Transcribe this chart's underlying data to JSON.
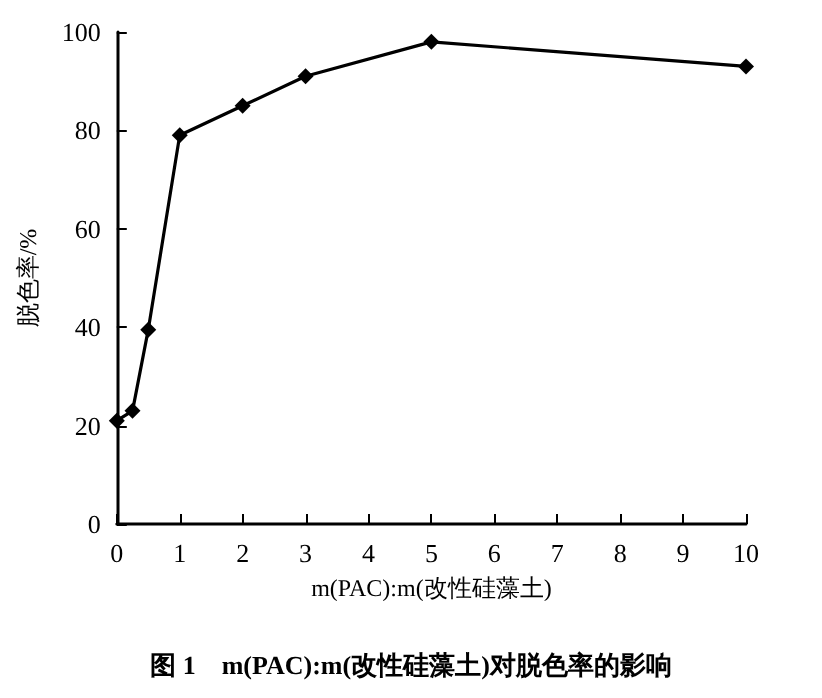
{
  "chart_data": {
    "type": "line",
    "xlabel": "m(PAC):m(改性硅藻土)",
    "ylabel": "脱色率/%",
    "annotations": [
      "图 1　m(PAC):m(改性硅藻土)对脱色率的影响"
    ],
    "x": [
      0,
      0.25,
      0.5,
      1,
      2,
      3,
      5,
      10
    ],
    "series": [
      {
        "color": "#000000",
        "values": [
          21,
          23,
          39.5,
          79,
          85,
          91,
          98,
          93
        ]
      }
    ],
    "xlim": [
      0,
      10
    ],
    "xticks": [
      0,
      1,
      2,
      3,
      4,
      5,
      6,
      7,
      8,
      9,
      10
    ],
    "ylim": [
      0,
      100
    ],
    "yticks": [
      0,
      20,
      40,
      60,
      80,
      100
    ],
    "marker": "diamond",
    "line_style": "solid"
  }
}
